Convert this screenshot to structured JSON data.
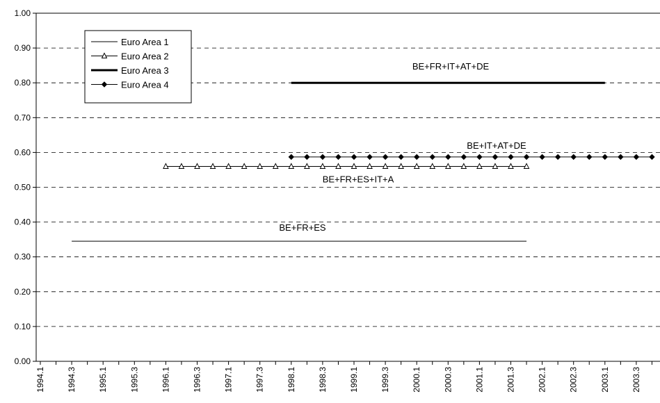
{
  "chart_data": {
    "type": "line",
    "x": [
      "1994.1",
      "1994.3",
      "1995.1",
      "1995.3",
      "1996.1",
      "1996.3",
      "1997.1",
      "1997.3",
      "1998.1",
      "1998.3",
      "1999.1",
      "1999.3",
      "2000.1",
      "2000.3",
      "2001.1",
      "2001.3",
      "2002.1",
      "2002.3",
      "2003.1",
      "2003.3"
    ],
    "ylim": [
      0,
      1
    ],
    "yticks": [
      "0.00",
      "0.10",
      "0.20",
      "0.30",
      "0.40",
      "0.50",
      "0.60",
      "0.70",
      "0.80",
      "0.90",
      "1.00"
    ],
    "grid": "horizontal dashed",
    "legend_position": "top-left",
    "series": [
      {
        "name": "Euro Area 1",
        "value": 0.345,
        "start": "1994.3",
        "end": "2001.4",
        "style": "thin-line",
        "annotation": "BE+FR+ES"
      },
      {
        "name": "Euro Area 2",
        "value": 0.56,
        "start": "1996.1",
        "end": "2001.4",
        "style": "triangle-markers",
        "annotation": "BE+FR+ES+IT+A"
      },
      {
        "name": "Euro Area 3",
        "value": 0.8,
        "start": "1998.1",
        "end": "2003.1",
        "style": "thick-line",
        "annotation": "BE+FR+IT+AT+DE"
      },
      {
        "name": "Euro Area 4",
        "value": 0.587,
        "start": "1998.1",
        "end": "2003.4",
        "style": "diamond-markers",
        "annotation": "BE+IT+AT+DE"
      }
    ],
    "colors": {
      "line": "#000000",
      "grid": "#000000",
      "background": "#ffffff"
    }
  }
}
